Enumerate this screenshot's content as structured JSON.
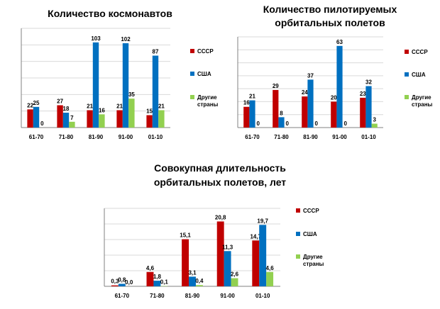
{
  "chart_data": [
    {
      "type": "bar",
      "title": [
        "Количество космонавтов"
      ],
      "categories": [
        "61-70",
        "71-80",
        "81-90",
        "91-00",
        "01-10"
      ],
      "series": [
        {
          "name": "СССР",
          "color": "#c00000",
          "values": [
            22,
            27,
            21,
            21,
            15
          ],
          "labels": [
            "22",
            "27",
            "21",
            "21",
            "15"
          ]
        },
        {
          "name": "США",
          "color": "#0070c0",
          "values": [
            25,
            18,
            103,
            102,
            87
          ],
          "labels": [
            "25",
            "18",
            "103",
            "102",
            "87"
          ]
        },
        {
          "name": "Другие страны",
          "legend": [
            "Другие",
            "страны"
          ],
          "color": "#92d050",
          "values": [
            0,
            7,
            16,
            35,
            21
          ],
          "labels": [
            "0",
            "7",
            "16",
            "35",
            "21"
          ]
        }
      ],
      "ylim": [
        0,
        120
      ],
      "grid": true,
      "legend_position": "right"
    },
    {
      "type": "bar",
      "title": [
        "Количество пилотируемых",
        "орбитальных полетов"
      ],
      "categories": [
        "61-70",
        "71-80",
        "81-90",
        "91-00",
        "01-10"
      ],
      "series": [
        {
          "name": "СССР",
          "color": "#c00000",
          "values": [
            16,
            29,
            24,
            20,
            23
          ],
          "labels": [
            "16",
            "29",
            "24",
            "20",
            "23"
          ]
        },
        {
          "name": "США",
          "color": "#0070c0",
          "values": [
            21,
            8,
            37,
            63,
            32
          ],
          "labels": [
            "21",
            "8",
            "37",
            "63",
            "32"
          ]
        },
        {
          "name": "Другие страны",
          "legend": [
            "Другие",
            "страны"
          ],
          "color": "#92d050",
          "values": [
            0,
            0,
            0,
            0,
            3
          ],
          "labels": [
            "0",
            "0",
            "0",
            "0",
            "3"
          ]
        }
      ],
      "ylim": [
        0,
        70
      ],
      "grid": true,
      "legend_position": "right"
    },
    {
      "type": "bar",
      "title": [
        "Совокупная длительность",
        "орбитальных полетов, лет"
      ],
      "categories": [
        "61-70",
        "71-80",
        "81-90",
        "91-00",
        "01-10"
      ],
      "series": [
        {
          "name": "СССР",
          "color": "#c00000",
          "values": [
            0.3,
            4.6,
            15.1,
            20.8,
            14.7
          ],
          "labels": [
            "0,3",
            "4,6",
            "15,1",
            "20,8",
            "14,7"
          ]
        },
        {
          "name": "США",
          "color": "#0070c0",
          "values": [
            0.8,
            1.8,
            3.1,
            11.3,
            19.7
          ],
          "labels": [
            "0,8",
            "1,8",
            "3,1",
            "11,3",
            "19,7"
          ]
        },
        {
          "name": "Другие страны",
          "legend": [
            "Другие",
            "страны"
          ],
          "color": "#92d050",
          "values": [
            0.0,
            0.1,
            0.4,
            2.6,
            4.6
          ],
          "labels": [
            "0,0",
            "0,1",
            "0,4",
            "2,6",
            "4,6"
          ]
        }
      ],
      "ylim": [
        0,
        25
      ],
      "grid": true,
      "legend_position": "right"
    }
  ]
}
